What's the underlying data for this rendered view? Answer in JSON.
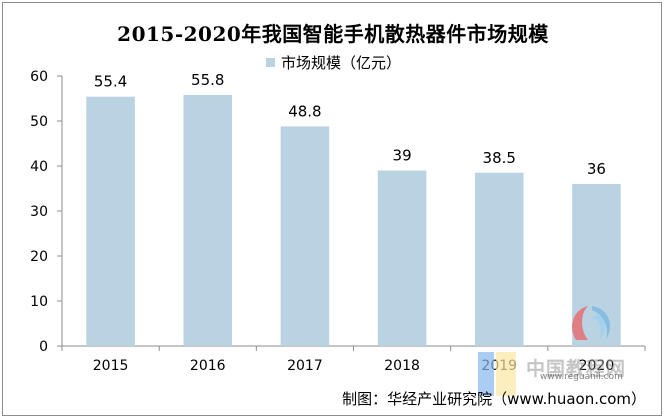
{
  "chart_data": {
    "type": "bar",
    "title": "2015-2020年我国智能手机散热器件市场规模",
    "categories": [
      "2015",
      "2016",
      "2017",
      "2018",
      "2019",
      "2020"
    ],
    "series": [
      {
        "name": "市场规模（亿元）",
        "values": [
          55.4,
          55.8,
          48.8,
          39,
          38.5,
          36
        ]
      }
    ],
    "data_labels": [
      "55.4",
      "55.8",
      "48.8",
      "39",
      "38.5",
      "36"
    ],
    "ylim": [
      0,
      60
    ],
    "yticks": [
      0,
      10,
      20,
      30,
      40,
      50,
      60
    ],
    "xlabel": "",
    "ylabel": "",
    "legend_position": "top-center",
    "grid": false
  },
  "colors": {
    "bar": "#b9d3e3",
    "axis": "#8c8c8c"
  },
  "source": "制图：华经产业研究院（www.huaon.com）",
  "watermark": {
    "text": "中国教程网",
    "url": "www.reguanli.com"
  }
}
